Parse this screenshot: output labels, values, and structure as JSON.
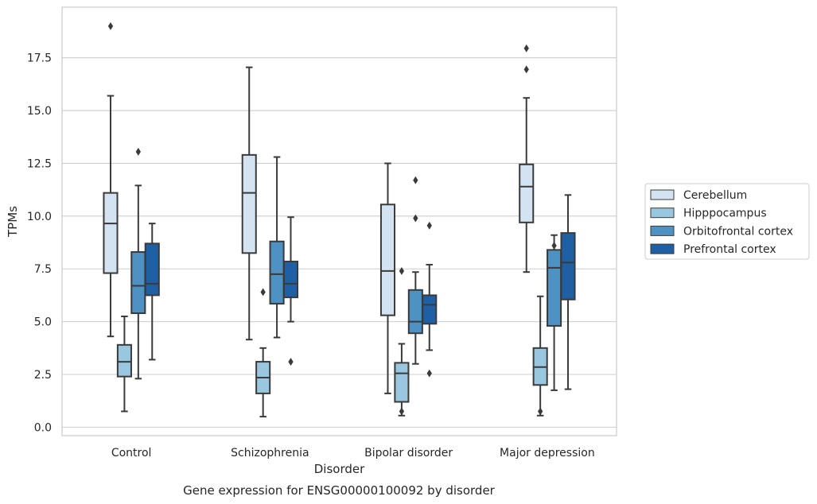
{
  "chart_data": {
    "type": "box",
    "title": "Gene expression for ENSG00000100092 by disorder",
    "xlabel": "Disorder",
    "ylabel": "TPMs",
    "ylim": [
      -0.4,
      19.9
    ],
    "yticks": [
      0.0,
      2.5,
      5.0,
      7.5,
      10.0,
      12.5,
      15.0,
      17.5
    ],
    "ytick_labels": [
      "0.0",
      "2.5",
      "5.0",
      "7.5",
      "10.0",
      "12.5",
      "15.0",
      "17.5"
    ],
    "grid": "horizontal",
    "legend_position": "right",
    "categories": [
      "Control",
      "Schizophrenia",
      "Bipolar disorder",
      "Major depression"
    ],
    "series": [
      {
        "name": "Cerebellum",
        "color": "#d3e3f2",
        "boxes": [
          {
            "whislo": 4.3,
            "q1": 7.3,
            "med": 9.65,
            "q3": 11.1,
            "whishi": 15.7,
            "fliers": [
              19.0
            ]
          },
          {
            "whislo": 4.15,
            "q1": 8.25,
            "med": 11.1,
            "q3": 12.9,
            "whishi": 17.05,
            "fliers": []
          },
          {
            "whislo": 1.6,
            "q1": 5.3,
            "med": 7.4,
            "q3": 10.55,
            "whishi": 12.5,
            "fliers": []
          },
          {
            "whislo": 7.35,
            "q1": 9.7,
            "med": 11.4,
            "q3": 12.45,
            "whishi": 15.6,
            "fliers": [
              16.95,
              17.95
            ]
          }
        ]
      },
      {
        "name": "Hipppocampus",
        "color": "#9ac7e0",
        "boxes": [
          {
            "whislo": 0.75,
            "q1": 2.4,
            "med": 3.1,
            "q3": 3.9,
            "whishi": 5.25,
            "fliers": []
          },
          {
            "whislo": 0.5,
            "q1": 1.6,
            "med": 2.35,
            "q3": 3.1,
            "whishi": 3.75,
            "fliers": [
              6.4
            ]
          },
          {
            "whislo": 0.55,
            "q1": 1.2,
            "med": 2.55,
            "q3": 3.05,
            "whishi": 3.95,
            "fliers": [
              7.4,
              0.75
            ]
          },
          {
            "whislo": 0.55,
            "q1": 2.0,
            "med": 2.85,
            "q3": 3.75,
            "whishi": 6.2,
            "fliers": [
              0.75
            ]
          }
        ]
      },
      {
        "name": "Orbitofrontal cortex",
        "color": "#4e91c3",
        "boxes": [
          {
            "whislo": 2.3,
            "q1": 5.4,
            "med": 6.7,
            "q3": 8.3,
            "whishi": 11.45,
            "fliers": [
              13.05
            ]
          },
          {
            "whislo": 4.25,
            "q1": 5.85,
            "med": 7.25,
            "q3": 8.8,
            "whishi": 12.8,
            "fliers": []
          },
          {
            "whislo": 3.0,
            "q1": 4.45,
            "med": 5.0,
            "q3": 6.5,
            "whishi": 7.35,
            "fliers": [
              11.7,
              9.9
            ]
          },
          {
            "whislo": 1.75,
            "q1": 4.8,
            "med": 7.55,
            "q3": 8.4,
            "whishi": 9.1,
            "fliers": [
              8.6
            ]
          }
        ]
      },
      {
        "name": "Prefrontal cortex",
        "color": "#1f5fa3",
        "boxes": [
          {
            "whislo": 3.2,
            "q1": 6.25,
            "med": 6.8,
            "q3": 8.7,
            "whishi": 9.65,
            "fliers": []
          },
          {
            "whislo": 5.0,
            "q1": 6.15,
            "med": 6.8,
            "q3": 7.85,
            "whishi": 9.95,
            "fliers": [
              3.1
            ]
          },
          {
            "whislo": 3.65,
            "q1": 4.9,
            "med": 5.8,
            "q3": 6.25,
            "whishi": 7.7,
            "fliers": [
              9.55,
              2.55
            ]
          },
          {
            "whislo": 1.8,
            "q1": 6.05,
            "med": 7.8,
            "q3": 9.2,
            "whishi": 11.0,
            "fliers": []
          }
        ]
      }
    ]
  }
}
